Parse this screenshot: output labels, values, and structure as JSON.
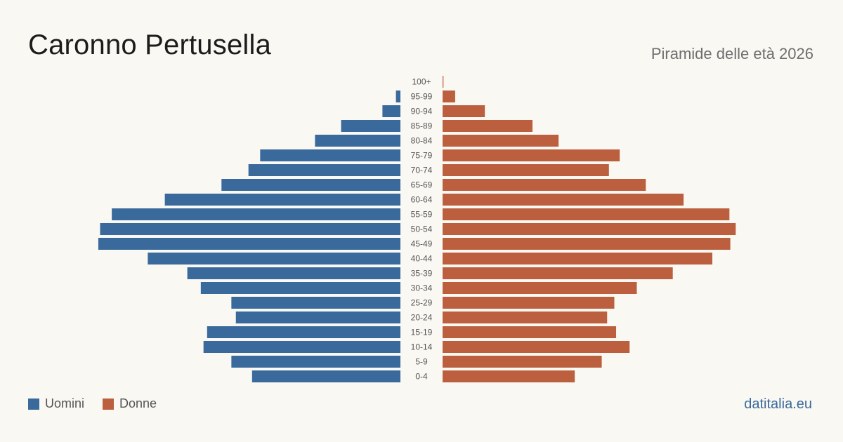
{
  "header": {
    "title": "Caronno Pertusella",
    "subtitle": "Piramide delle età 2026"
  },
  "legend": {
    "men_label": "Uomini",
    "women_label": "Donne"
  },
  "brand": "datitalia.eu",
  "colors": {
    "men": "#3a6a9c",
    "women": "#bc5f3e",
    "background": "#faf8f3"
  },
  "chart_data": {
    "type": "bar",
    "orientation": "horizontal-pyramid",
    "title": "Caronno Pertusella",
    "subtitle": "Piramide delle età 2026",
    "categories": [
      "100+",
      "95-99",
      "90-94",
      "85-89",
      "80-84",
      "75-79",
      "70-74",
      "65-69",
      "60-64",
      "55-59",
      "50-54",
      "45-49",
      "40-44",
      "35-39",
      "30-34",
      "25-29",
      "20-24",
      "15-19",
      "10-14",
      "5-9",
      "0-4"
    ],
    "series": [
      {
        "name": "Uomini",
        "values": [
          0,
          5,
          20,
          66,
          95,
          156,
          169,
          199,
          262,
          321,
          334,
          336,
          281,
          237,
          222,
          188,
          183,
          215,
          219,
          188,
          165
        ]
      },
      {
        "name": "Donne",
        "values": [
          1,
          14,
          47,
          100,
          129,
          197,
          185,
          226,
          268,
          319,
          326,
          320,
          300,
          256,
          216,
          191,
          183,
          193,
          208,
          177,
          147
        ]
      }
    ],
    "legend_position": "bottom-left",
    "grid": false
  }
}
